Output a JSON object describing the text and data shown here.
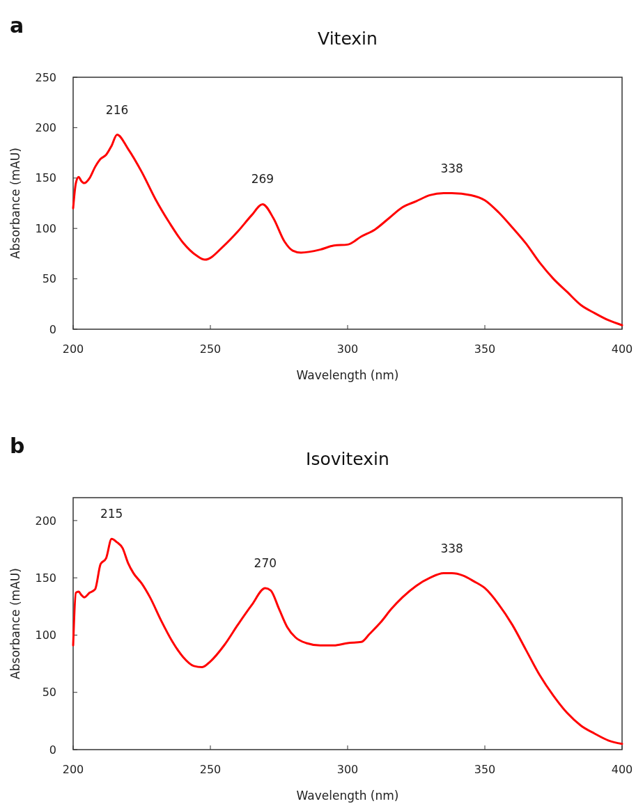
{
  "chart_data": [
    {
      "type": "line",
      "title": "Vitexin",
      "xlabel": "Wavelength (nm)",
      "ylabel": "Absorbance (mAU)",
      "annotations": [
        "a",
        "216",
        "269",
        "338"
      ],
      "xlim": [
        200,
        400
      ],
      "xticks": [
        200,
        250,
        300,
        350,
        400
      ],
      "ylim": [
        0,
        250
      ],
      "yticks": [
        0,
        50,
        100,
        150,
        200,
        250
      ],
      "grid": false,
      "marker": "none",
      "line_style": "solid",
      "series": [
        {
          "color": "#ff0000",
          "x": [
            200,
            201,
            202,
            203,
            204,
            206,
            208,
            210,
            212,
            214,
            216,
            220,
            225,
            230,
            235,
            240,
            245,
            248,
            255,
            260,
            265,
            269,
            273,
            277,
            280,
            283,
            290,
            295,
            300,
            305,
            310,
            315,
            320,
            325,
            330,
            335,
            338,
            345,
            350,
            355,
            360,
            365,
            370,
            375,
            380,
            385,
            390,
            395,
            400
          ],
          "values": [
            120,
            145,
            151,
            147,
            145,
            150,
            161,
            169,
            173,
            182,
            193,
            179,
            156,
            129,
            106,
            86,
            73,
            69,
            83,
            97,
            113,
            124,
            110,
            87,
            78,
            76,
            79,
            83,
            84,
            92,
            99,
            110,
            121,
            127,
            133,
            135,
            135,
            133,
            128,
            116,
            101,
            85,
            66,
            50,
            37,
            24,
            16,
            9,
            4
          ]
        }
      ]
    },
    {
      "type": "line",
      "title": "Isovitexin",
      "xlabel": "Wavelength (nm)",
      "ylabel": "Absorbance (mAU)",
      "annotations": [
        "b",
        "215",
        "270",
        "338"
      ],
      "xlim": [
        200,
        400
      ],
      "xticks": [
        200,
        250,
        300,
        350,
        400
      ],
      "ylim": [
        0,
        220
      ],
      "yticks": [
        0,
        50,
        100,
        150,
        200
      ],
      "grid": false,
      "marker": "none",
      "line_style": "solid",
      "series": [
        {
          "color": "#ff0000",
          "x": [
            200,
            201,
            202,
            203,
            204,
            206,
            208,
            210,
            212,
            214,
            216,
            218,
            220,
            222,
            225,
            228,
            232,
            236,
            240,
            244,
            247,
            250,
            255,
            260,
            265,
            270,
            272,
            275,
            278,
            281,
            285,
            290,
            295,
            300,
            305,
            308,
            312,
            316,
            320,
            325,
            330,
            335,
            338,
            342,
            346,
            350,
            355,
            360,
            365,
            370,
            375,
            380,
            385,
            390,
            395,
            400
          ],
          "values": [
            91,
            137,
            138,
            135,
            133,
            137,
            140,
            162,
            167,
            184,
            181,
            176,
            163,
            154,
            145,
            133,
            113,
            95,
            81,
            73,
            72,
            77,
            91,
            109,
            126,
            141,
            139,
            123,
            107,
            98,
            93,
            91,
            91,
            93,
            94,
            101,
            111,
            123,
            133,
            143,
            150,
            154,
            154,
            152,
            147,
            141,
            127,
            109,
            87,
            65,
            47,
            32,
            21,
            14,
            8,
            5
          ]
        }
      ]
    }
  ]
}
